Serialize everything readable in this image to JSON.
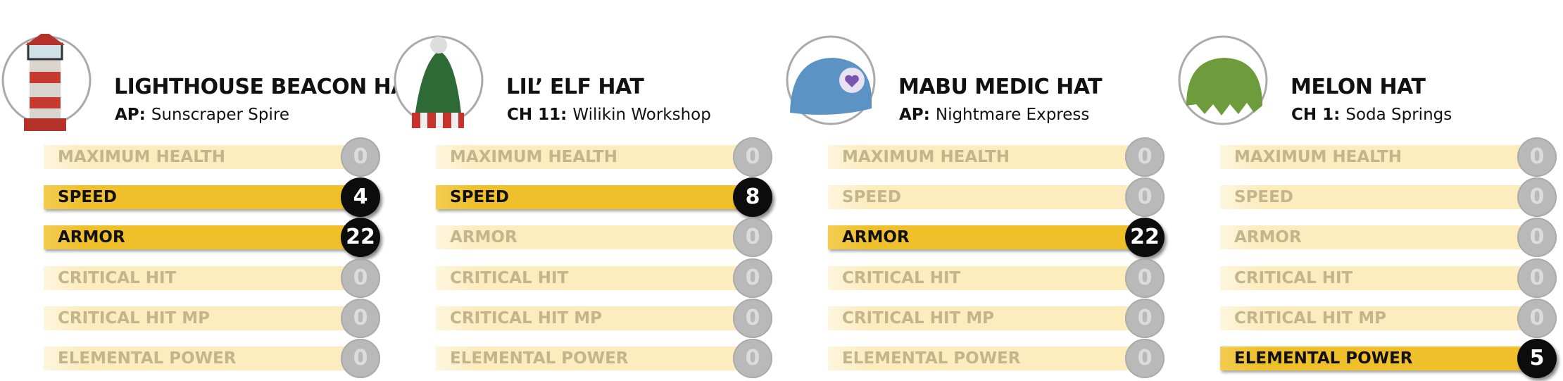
{
  "hats": [
    {
      "name": "LIGHTHOUSE BEACON HAT",
      "source_label": "AP:",
      "source": "Sunscraper Spire",
      "stats": [
        {
          "name": "MAXIMUM HEALTH",
          "value": 0
        },
        {
          "name": "SPEED",
          "value": 4
        },
        {
          "name": "ARMOR",
          "value": 22
        },
        {
          "name": "CRITICAL HIT",
          "value": 0
        },
        {
          "name": "CRITICAL HIT MP",
          "value": 0
        },
        {
          "name": "ELEMENTAL POWER",
          "value": 0
        }
      ]
    },
    {
      "name": "LIL’ ELF HAT",
      "source_label": "CH 11:",
      "source": "Wilikin Workshop",
      "stats": [
        {
          "name": "MAXIMUM HEALTH",
          "value": 0
        },
        {
          "name": "SPEED",
          "value": 8
        },
        {
          "name": "ARMOR",
          "value": 0
        },
        {
          "name": "CRITICAL HIT",
          "value": 0
        },
        {
          "name": "CRITICAL HIT MP",
          "value": 0
        },
        {
          "name": "ELEMENTAL POWER",
          "value": 0
        }
      ]
    },
    {
      "name": "MABU MEDIC HAT",
      "source_label": "AP:",
      "source": "Nightmare Express",
      "stats": [
        {
          "name": "MAXIMUM HEALTH",
          "value": 0
        },
        {
          "name": "SPEED",
          "value": 0
        },
        {
          "name": "ARMOR",
          "value": 22
        },
        {
          "name": "CRITICAL HIT",
          "value": 0
        },
        {
          "name": "CRITICAL HIT MP",
          "value": 0
        },
        {
          "name": "ELEMENTAL POWER",
          "value": 0
        }
      ]
    },
    {
      "name": "MELON HAT",
      "source_label": "CH 1:",
      "source": "Soda Springs",
      "stats": [
        {
          "name": "MAXIMUM HEALTH",
          "value": 0
        },
        {
          "name": "SPEED",
          "value": 0
        },
        {
          "name": "ARMOR",
          "value": 0
        },
        {
          "name": "CRITICAL HIT",
          "value": 0
        },
        {
          "name": "CRITICAL HIT MP",
          "value": 0
        },
        {
          "name": "ELEMENTAL POWER",
          "value": 5
        }
      ]
    }
  ]
}
